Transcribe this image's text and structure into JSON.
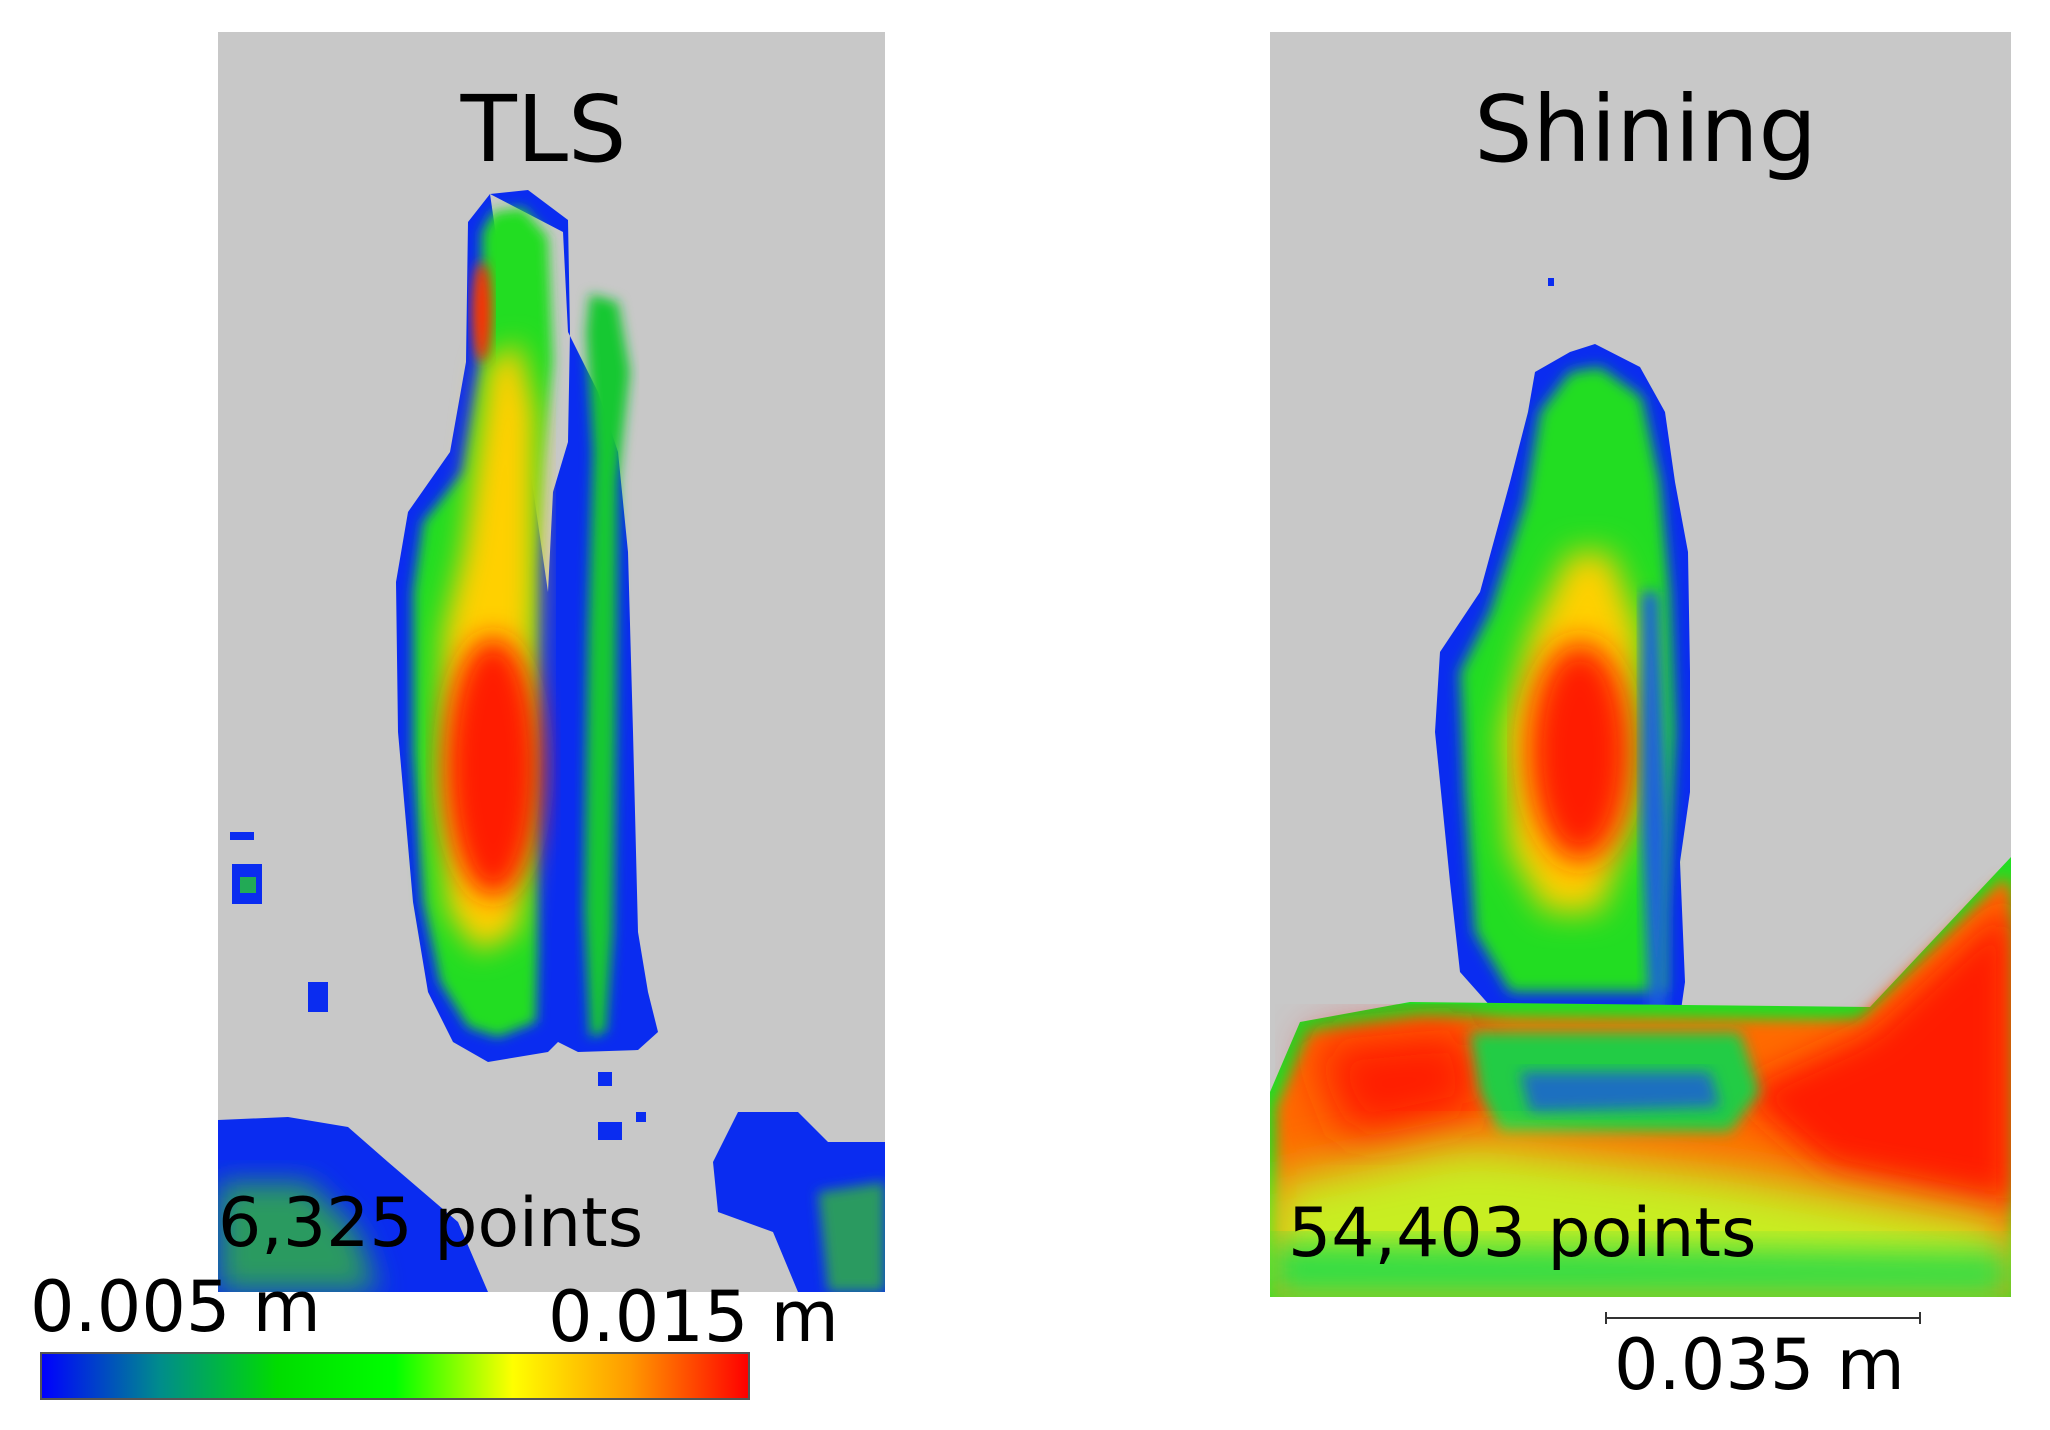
{
  "figure": {
    "left_panel": {
      "title": "TLS",
      "point_count": "6,325 points"
    },
    "right_panel": {
      "title": "Shining",
      "point_count": "54,403 points"
    },
    "colorbar": {
      "min_label": "0.005 m",
      "max_label": "0.015 m",
      "stops": [
        "#0000ff",
        "#008c8c",
        "#00dc00",
        "#00ff00",
        "#ffff00",
        "#ff9900",
        "#ff0000"
      ]
    },
    "scale_bar": {
      "label": "0.035 m"
    }
  }
}
